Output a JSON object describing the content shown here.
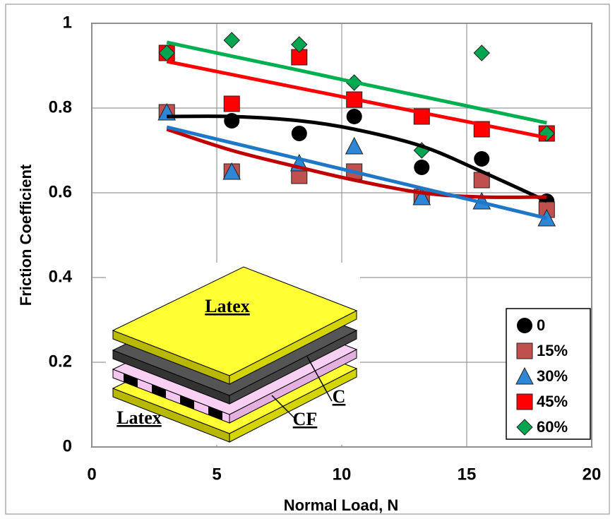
{
  "chart_data": {
    "type": "scatter",
    "x_label": "Normal Load, N",
    "y_label": "Friction Coefficient",
    "x": [
      3,
      5.6,
      8.3,
      10.5,
      13.2,
      15.6,
      18.2
    ],
    "xlim": [
      0,
      20
    ],
    "xticks": [
      0,
      5,
      10,
      15,
      20
    ],
    "ylim": [
      0,
      1
    ],
    "yticks": [
      0,
      0.2,
      0.4,
      0.6,
      0.8,
      1
    ],
    "grid": true,
    "legend": "lower right",
    "series": [
      {
        "name": "0",
        "marker": "circle",
        "color": "#000000",
        "values": [
          0.79,
          0.77,
          0.74,
          0.78,
          0.66,
          0.68,
          0.58
        ],
        "trend_color": "#000000",
        "trend_values": [
          0.78,
          0.78,
          0.77,
          0.75,
          0.71,
          0.65,
          0.58
        ]
      },
      {
        "name": "15%",
        "marker": "square",
        "color": "#c0504d",
        "values": [
          0.79,
          0.65,
          0.64,
          0.65,
          0.59,
          0.63,
          0.56
        ],
        "trend_color": "#c00000",
        "trend_values": [
          0.75,
          0.7,
          0.66,
          0.63,
          0.6,
          0.59,
          0.59
        ]
      },
      {
        "name": "30%",
        "marker": "triangle",
        "color": "#2e86d6",
        "values": [
          0.79,
          0.65,
          0.67,
          0.71,
          0.59,
          0.58,
          0.54
        ],
        "trend_color": "#1f77c8",
        "trend_values": [
          0.755,
          0.718,
          0.68,
          0.649,
          0.611,
          0.577,
          0.54
        ]
      },
      {
        "name": "45%",
        "marker": "square",
        "color": "#ff0000",
        "values": [
          0.93,
          0.81,
          0.92,
          0.82,
          0.78,
          0.75,
          0.74
        ],
        "trend_color": "#ff0000",
        "trend_values": [
          0.91,
          0.879,
          0.847,
          0.821,
          0.789,
          0.761,
          0.73
        ]
      },
      {
        "name": "60%",
        "marker": "diamond",
        "color": "#00a550",
        "values": [
          0.93,
          0.96,
          0.95,
          0.86,
          0.7,
          0.93,
          0.74
        ],
        "trend_color": "#00b050",
        "trend_values": [
          0.955,
          0.9225,
          0.889,
          0.861,
          0.8275,
          0.7975,
          0.765
        ]
      }
    ]
  },
  "inset": {
    "labels": [
      "Latex",
      "Latex",
      "C",
      "CF"
    ]
  }
}
